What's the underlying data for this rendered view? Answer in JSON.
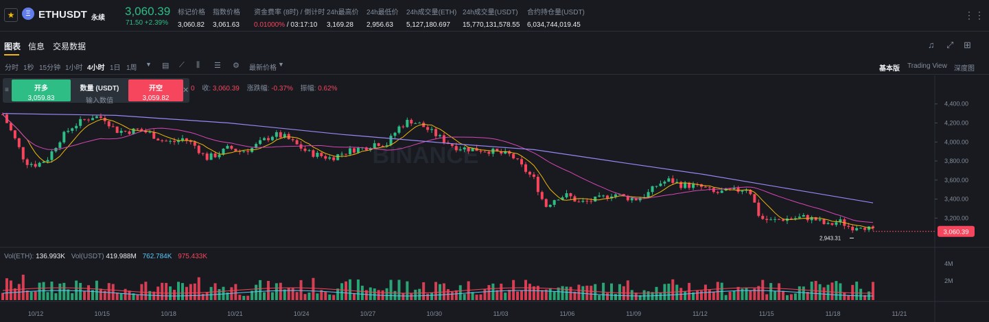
{
  "header": {
    "symbol": "ETHUSDT",
    "contract_type": "永续",
    "last_price": "3,060.39",
    "change": "71.50 +2.39%",
    "stats": [
      {
        "label": "标记价格",
        "value": "3,060.82"
      },
      {
        "label": "指数价格",
        "value": "3,061.63"
      },
      {
        "label": "资金费率 (8时) / 倒计时",
        "value_red": "0.01000%",
        "value": " / 03:17:10"
      },
      {
        "label": "24h最高价",
        "value": "3,169.28"
      },
      {
        "label": "24h最低价",
        "value": "2,956.63"
      },
      {
        "label": "24h成交量(ETH)",
        "value": "5,127,180.697"
      },
      {
        "label": "24h成交量(USDT)",
        "value": "15,770,131,578.55"
      },
      {
        "label": "合约持仓量(USDT)",
        "value": "6,034,744,019.45"
      }
    ]
  },
  "tabs": [
    "图表",
    "信息",
    "交易数据"
  ],
  "toolbar": {
    "timeframes": [
      "分时",
      "1秒",
      "15分钟",
      "1小时",
      "4小时",
      "1日",
      "1周"
    ],
    "selected_timeframe": "4小时",
    "price_type": "最新价格",
    "views": [
      "基本版",
      "Trading View",
      "深度图"
    ],
    "selected_view": "基本版"
  },
  "quick_trade": {
    "long_label": "开多",
    "long_price": "3,059.83",
    "qty_label": "数量 (USDT)",
    "qty_placeholder": "输入数值",
    "short_label": "开空",
    "short_price": "3,059.82"
  },
  "ohlc_info": {
    "o_suffix": "0",
    "close_label": "收:",
    "close": "3,060.39",
    "chg_label": "涨跌幅:",
    "chg": "-0.37%",
    "amp_label": "振幅:",
    "amp": "0.62%"
  },
  "volume_info": {
    "eth_label": "Vol(ETH):",
    "eth": "136.993K",
    "usdt_label": "Vol(USDT)",
    "usdt": "419.988M",
    "ma1": "762.784K",
    "ma2": "975.433K"
  },
  "watermark": "BINANCE",
  "colors": {
    "up": "#2ebd85",
    "down": "#f6465d",
    "ma7": "#f0b90b",
    "ma25": "#d946b5",
    "ma99": "#9b87f5",
    "accent": "#f0b90b"
  },
  "chart_data": {
    "type": "candlestick",
    "y_axis_ticks": [
      "4,400.00",
      "4,200.00",
      "4,000.00",
      "3,800.00",
      "3,600.00",
      "3,400.00",
      "3,200.00"
    ],
    "ylim": [
      2900,
      4470
    ],
    "x_axis_ticks": [
      "10/12",
      "10/15",
      "10/18",
      "10/21",
      "10/24",
      "10/27",
      "10/30",
      "11/03",
      "11/06",
      "11/09",
      "11/12",
      "11/15",
      "11/18",
      "11/21"
    ],
    "current_price_label": "3,060.39",
    "low_marker_label": "2,943.31",
    "volume_ticks": [
      "4M",
      "2M"
    ],
    "close_path": [
      [
        0,
        4290
      ],
      [
        1,
        4050
      ],
      [
        2,
        3790
      ],
      [
        3,
        3760
      ],
      [
        4,
        3830
      ],
      [
        5,
        4020
      ],
      [
        6,
        4150
      ],
      [
        7,
        4220
      ],
      [
        8,
        4270
      ],
      [
        9,
        4250
      ],
      [
        10,
        4120
      ],
      [
        11,
        4110
      ],
      [
        12,
        4130
      ],
      [
        13,
        4090
      ],
      [
        14,
        4020
      ],
      [
        15,
        3995
      ],
      [
        16,
        4040
      ],
      [
        17,
        3960
      ],
      [
        18,
        3830
      ],
      [
        19,
        3870
      ],
      [
        20,
        3940
      ],
      [
        21,
        3900
      ],
      [
        22,
        3930
      ],
      [
        23,
        4010
      ],
      [
        24,
        4080
      ],
      [
        25,
        4050
      ],
      [
        26,
        3970
      ],
      [
        27,
        3890
      ],
      [
        28,
        3860
      ],
      [
        29,
        3830
      ],
      [
        30,
        3880
      ],
      [
        31,
        3920
      ],
      [
        32,
        3940
      ],
      [
        33,
        3990
      ],
      [
        34,
        3980
      ],
      [
        35,
        4150
      ],
      [
        36,
        4230
      ],
      [
        37,
        4180
      ],
      [
        38,
        4100
      ],
      [
        39,
        4020
      ],
      [
        40,
        3950
      ],
      [
        41,
        3930
      ],
      [
        42,
        3920
      ],
      [
        43,
        3910
      ],
      [
        44,
        3880
      ],
      [
        45,
        3860
      ],
      [
        46,
        3730
      ],
      [
        47,
        3610
      ],
      [
        48,
        3320
      ],
      [
        49,
        3420
      ],
      [
        50,
        3440
      ],
      [
        51,
        3360
      ],
      [
        52,
        3380
      ],
      [
        53,
        3410
      ],
      [
        54,
        3460
      ],
      [
        55,
        3420
      ],
      [
        56,
        3400
      ],
      [
        57,
        3450
      ],
      [
        58,
        3560
      ],
      [
        59,
        3600
      ],
      [
        60,
        3550
      ],
      [
        61,
        3540
      ],
      [
        62,
        3520
      ],
      [
        63,
        3460
      ],
      [
        64,
        3480
      ],
      [
        65,
        3490
      ],
      [
        66,
        3520
      ],
      [
        67,
        3200
      ],
      [
        68,
        3170
      ],
      [
        69,
        3190
      ],
      [
        70,
        3200
      ],
      [
        71,
        3210
      ],
      [
        72,
        3180
      ],
      [
        73,
        3120
      ],
      [
        74,
        3170
      ],
      [
        75,
        3100
      ],
      [
        76,
        3130
      ],
      [
        77,
        3060
      ]
    ],
    "x_span": [
      0,
      77
    ],
    "ma99_path": [
      [
        0,
        4300
      ],
      [
        10,
        4280
      ],
      [
        20,
        4200
      ],
      [
        30,
        4080
      ],
      [
        40,
        3980
      ],
      [
        47,
        3920
      ],
      [
        55,
        3780
      ],
      [
        62,
        3660
      ],
      [
        70,
        3500
      ],
      [
        77,
        3360
      ]
    ]
  }
}
